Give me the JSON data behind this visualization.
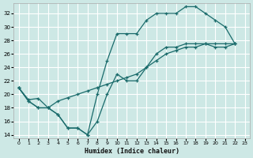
{
  "xlabel": "Humidex (Indice chaleur)",
  "background_color": "#cde8e5",
  "grid_color": "#ffffff",
  "line_color": "#1a6b6b",
  "xlim": [
    -0.5,
    23.5
  ],
  "ylim": [
    13.5,
    33.5
  ],
  "xticks": [
    0,
    1,
    2,
    3,
    4,
    5,
    6,
    7,
    8,
    9,
    10,
    11,
    12,
    13,
    14,
    15,
    16,
    17,
    18,
    19,
    20,
    21,
    22,
    23
  ],
  "yticks": [
    14,
    16,
    18,
    20,
    22,
    24,
    26,
    28,
    30,
    32
  ],
  "line1_x": [
    0,
    1,
    2,
    3,
    4,
    5,
    6,
    7,
    8,
    9,
    10,
    11,
    12,
    13,
    14,
    15,
    16,
    17,
    18,
    19,
    20,
    21,
    22
  ],
  "line1_y": [
    21,
    19,
    18,
    18,
    17,
    15,
    15,
    14,
    20,
    25,
    29,
    29,
    29,
    31,
    32,
    32,
    32,
    33,
    33,
    32,
    31,
    30,
    27.5
  ],
  "line2_x": [
    0,
    1,
    2,
    3,
    4,
    5,
    6,
    7,
    8,
    9,
    10,
    11,
    12,
    13,
    14,
    15,
    16,
    17,
    18,
    19,
    20,
    21,
    22
  ],
  "line2_y": [
    21,
    19.2,
    19.4,
    18,
    19,
    19.5,
    20,
    20.5,
    21,
    21.5,
    22,
    22.5,
    23,
    24,
    25,
    26,
    26.5,
    27,
    27,
    27.5,
    27.5,
    27.5,
    27.5
  ],
  "line3_x": [
    0,
    1,
    2,
    3,
    4,
    5,
    6,
    7,
    8,
    9,
    10,
    11,
    12,
    13,
    14,
    15,
    16,
    17,
    18,
    19,
    20,
    21,
    22
  ],
  "line3_y": [
    21,
    19,
    18,
    18,
    17,
    15,
    15,
    14,
    16,
    20,
    23,
    22,
    22,
    24,
    26,
    27,
    27,
    27.5,
    27.5,
    27.5,
    27,
    27,
    27.5
  ]
}
